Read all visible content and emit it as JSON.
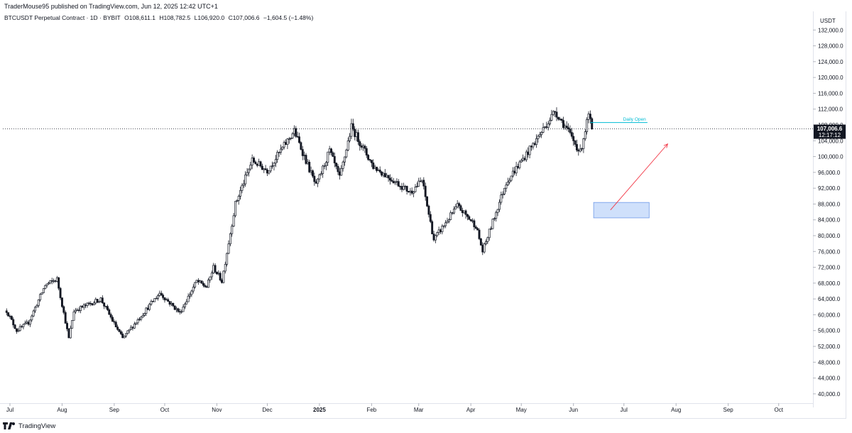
{
  "header": {
    "publisher": "TraderMouse95 published on TradingView.com, Jun 12, 2025 12:42 UTC+1",
    "symbol": "BTCUSDT Perpetual Contract · 1D · BYBIT",
    "open": "O108,611.1",
    "high": "H108,782.5",
    "low": "L106,920.0",
    "close": "C107,006.6",
    "change": "−1,604.5 (−1.48%)"
  },
  "footer": {
    "brand": "TradingView"
  },
  "colors": {
    "candle": "#131722",
    "price_line": "#131722",
    "daily_open": "#00bcd4",
    "arrow": "#f23645",
    "zone_fill": "#cfe0fb",
    "zone_border": "#6f9ae8",
    "grid_text": "#131722"
  },
  "chart_data": {
    "type": "candlestick",
    "currency": "USDT",
    "ylim": [
      38000,
      136000
    ],
    "y_ticks": [
      40000,
      44000,
      48000,
      52000,
      56000,
      60000,
      64000,
      68000,
      72000,
      76000,
      80000,
      84000,
      88000,
      92000,
      96000,
      100000,
      104000,
      108000,
      112000,
      116000,
      120000,
      124000,
      128000,
      132000
    ],
    "y_tick_labels": [
      "40,000.0",
      "44,000.0",
      "48,000.0",
      "52,000.0",
      "56,000.0",
      "60,000.0",
      "64,000.0",
      "68,000.0",
      "72,000.0",
      "76,000.0",
      "80,000.0",
      "84,000.0",
      "88,000.0",
      "92,000.0",
      "96,000.0",
      "100,000.0",
      "104,000.0",
      "108,000.0",
      "112,000.0",
      "116,000.0",
      "120,000.0",
      "124,000.0",
      "128,000.0",
      "132,000.0"
    ],
    "x_start": "2024-07-01",
    "x_end": "2025-10-18",
    "x_ticks": [
      {
        "date": "2024-07-01",
        "label": "Jul",
        "bold": false
      },
      {
        "date": "2024-08-01",
        "label": "Aug",
        "bold": false
      },
      {
        "date": "2024-09-01",
        "label": "Sep",
        "bold": false
      },
      {
        "date": "2024-10-01",
        "label": "Oct",
        "bold": false
      },
      {
        "date": "2024-11-01",
        "label": "Nov",
        "bold": false
      },
      {
        "date": "2024-12-01",
        "label": "Dec",
        "bold": false
      },
      {
        "date": "2025-01-01",
        "label": "2025",
        "bold": true
      },
      {
        "date": "2025-02-01",
        "label": "Feb",
        "bold": false
      },
      {
        "date": "2025-03-01",
        "label": "Mar",
        "bold": false
      },
      {
        "date": "2025-04-01",
        "label": "Apr",
        "bold": false
      },
      {
        "date": "2025-05-01",
        "label": "May",
        "bold": false
      },
      {
        "date": "2025-06-01",
        "label": "Jun",
        "bold": false
      },
      {
        "date": "2025-07-01",
        "label": "Jul",
        "bold": false
      },
      {
        "date": "2025-08-01",
        "label": "Aug",
        "bold": false
      },
      {
        "date": "2025-09-01",
        "label": "Sep",
        "bold": false
      },
      {
        "date": "2025-10-01",
        "label": "Oct",
        "bold": false
      }
    ],
    "price_path": [
      [
        "2024-06-29",
        61000
      ],
      [
        "2024-07-05",
        56000
      ],
      [
        "2024-07-12",
        58000
      ],
      [
        "2024-07-22",
        67500
      ],
      [
        "2024-07-29",
        69000
      ],
      [
        "2024-08-05",
        54000
      ],
      [
        "2024-08-08",
        61000
      ],
      [
        "2024-08-24",
        64000
      ],
      [
        "2024-08-31",
        58500
      ],
      [
        "2024-09-06",
        54000
      ],
      [
        "2024-09-28",
        65500
      ],
      [
        "2024-10-10",
        60500
      ],
      [
        "2024-10-20",
        68500
      ],
      [
        "2024-10-26",
        67000
      ],
      [
        "2024-10-30",
        72000
      ],
      [
        "2024-11-04",
        68500
      ],
      [
        "2024-11-12",
        88000
      ],
      [
        "2024-11-22",
        99000
      ],
      [
        "2024-12-01",
        96500
      ],
      [
        "2024-12-17",
        106500
      ],
      [
        "2024-12-30",
        92500
      ],
      [
        "2025-01-07",
        101500
      ],
      [
        "2025-01-13",
        94500
      ],
      [
        "2025-01-20",
        107500
      ],
      [
        "2025-02-02",
        97500
      ],
      [
        "2025-02-24",
        91000
      ],
      [
        "2025-03-03",
        94000
      ],
      [
        "2025-03-10",
        79000
      ],
      [
        "2025-03-24",
        87500
      ],
      [
        "2025-04-04",
        82500
      ],
      [
        "2025-04-08",
        76000
      ],
      [
        "2025-04-22",
        93500
      ],
      [
        "2025-05-08",
        103000
      ],
      [
        "2025-05-21",
        111500
      ],
      [
        "2025-05-28",
        107000
      ],
      [
        "2025-06-05",
        101000
      ],
      [
        "2025-06-10",
        110500
      ],
      [
        "2025-06-12",
        107006.6
      ]
    ],
    "last_price": 107006.6,
    "last_price_label": "107,006.6",
    "countdown_label": "12:17:12",
    "daily_open": {
      "label": "Daily Open",
      "price": 108611.1,
      "from": "2025-06-11",
      "to": "2025-07-15"
    },
    "zone": {
      "from": "2025-06-13",
      "to": "2025-07-16",
      "price_low": 84500,
      "price_high": 88400
    },
    "arrow": {
      "from_date": "2025-06-23",
      "from_price": 86500,
      "to_date": "2025-07-27",
      "to_price": 103200
    }
  }
}
